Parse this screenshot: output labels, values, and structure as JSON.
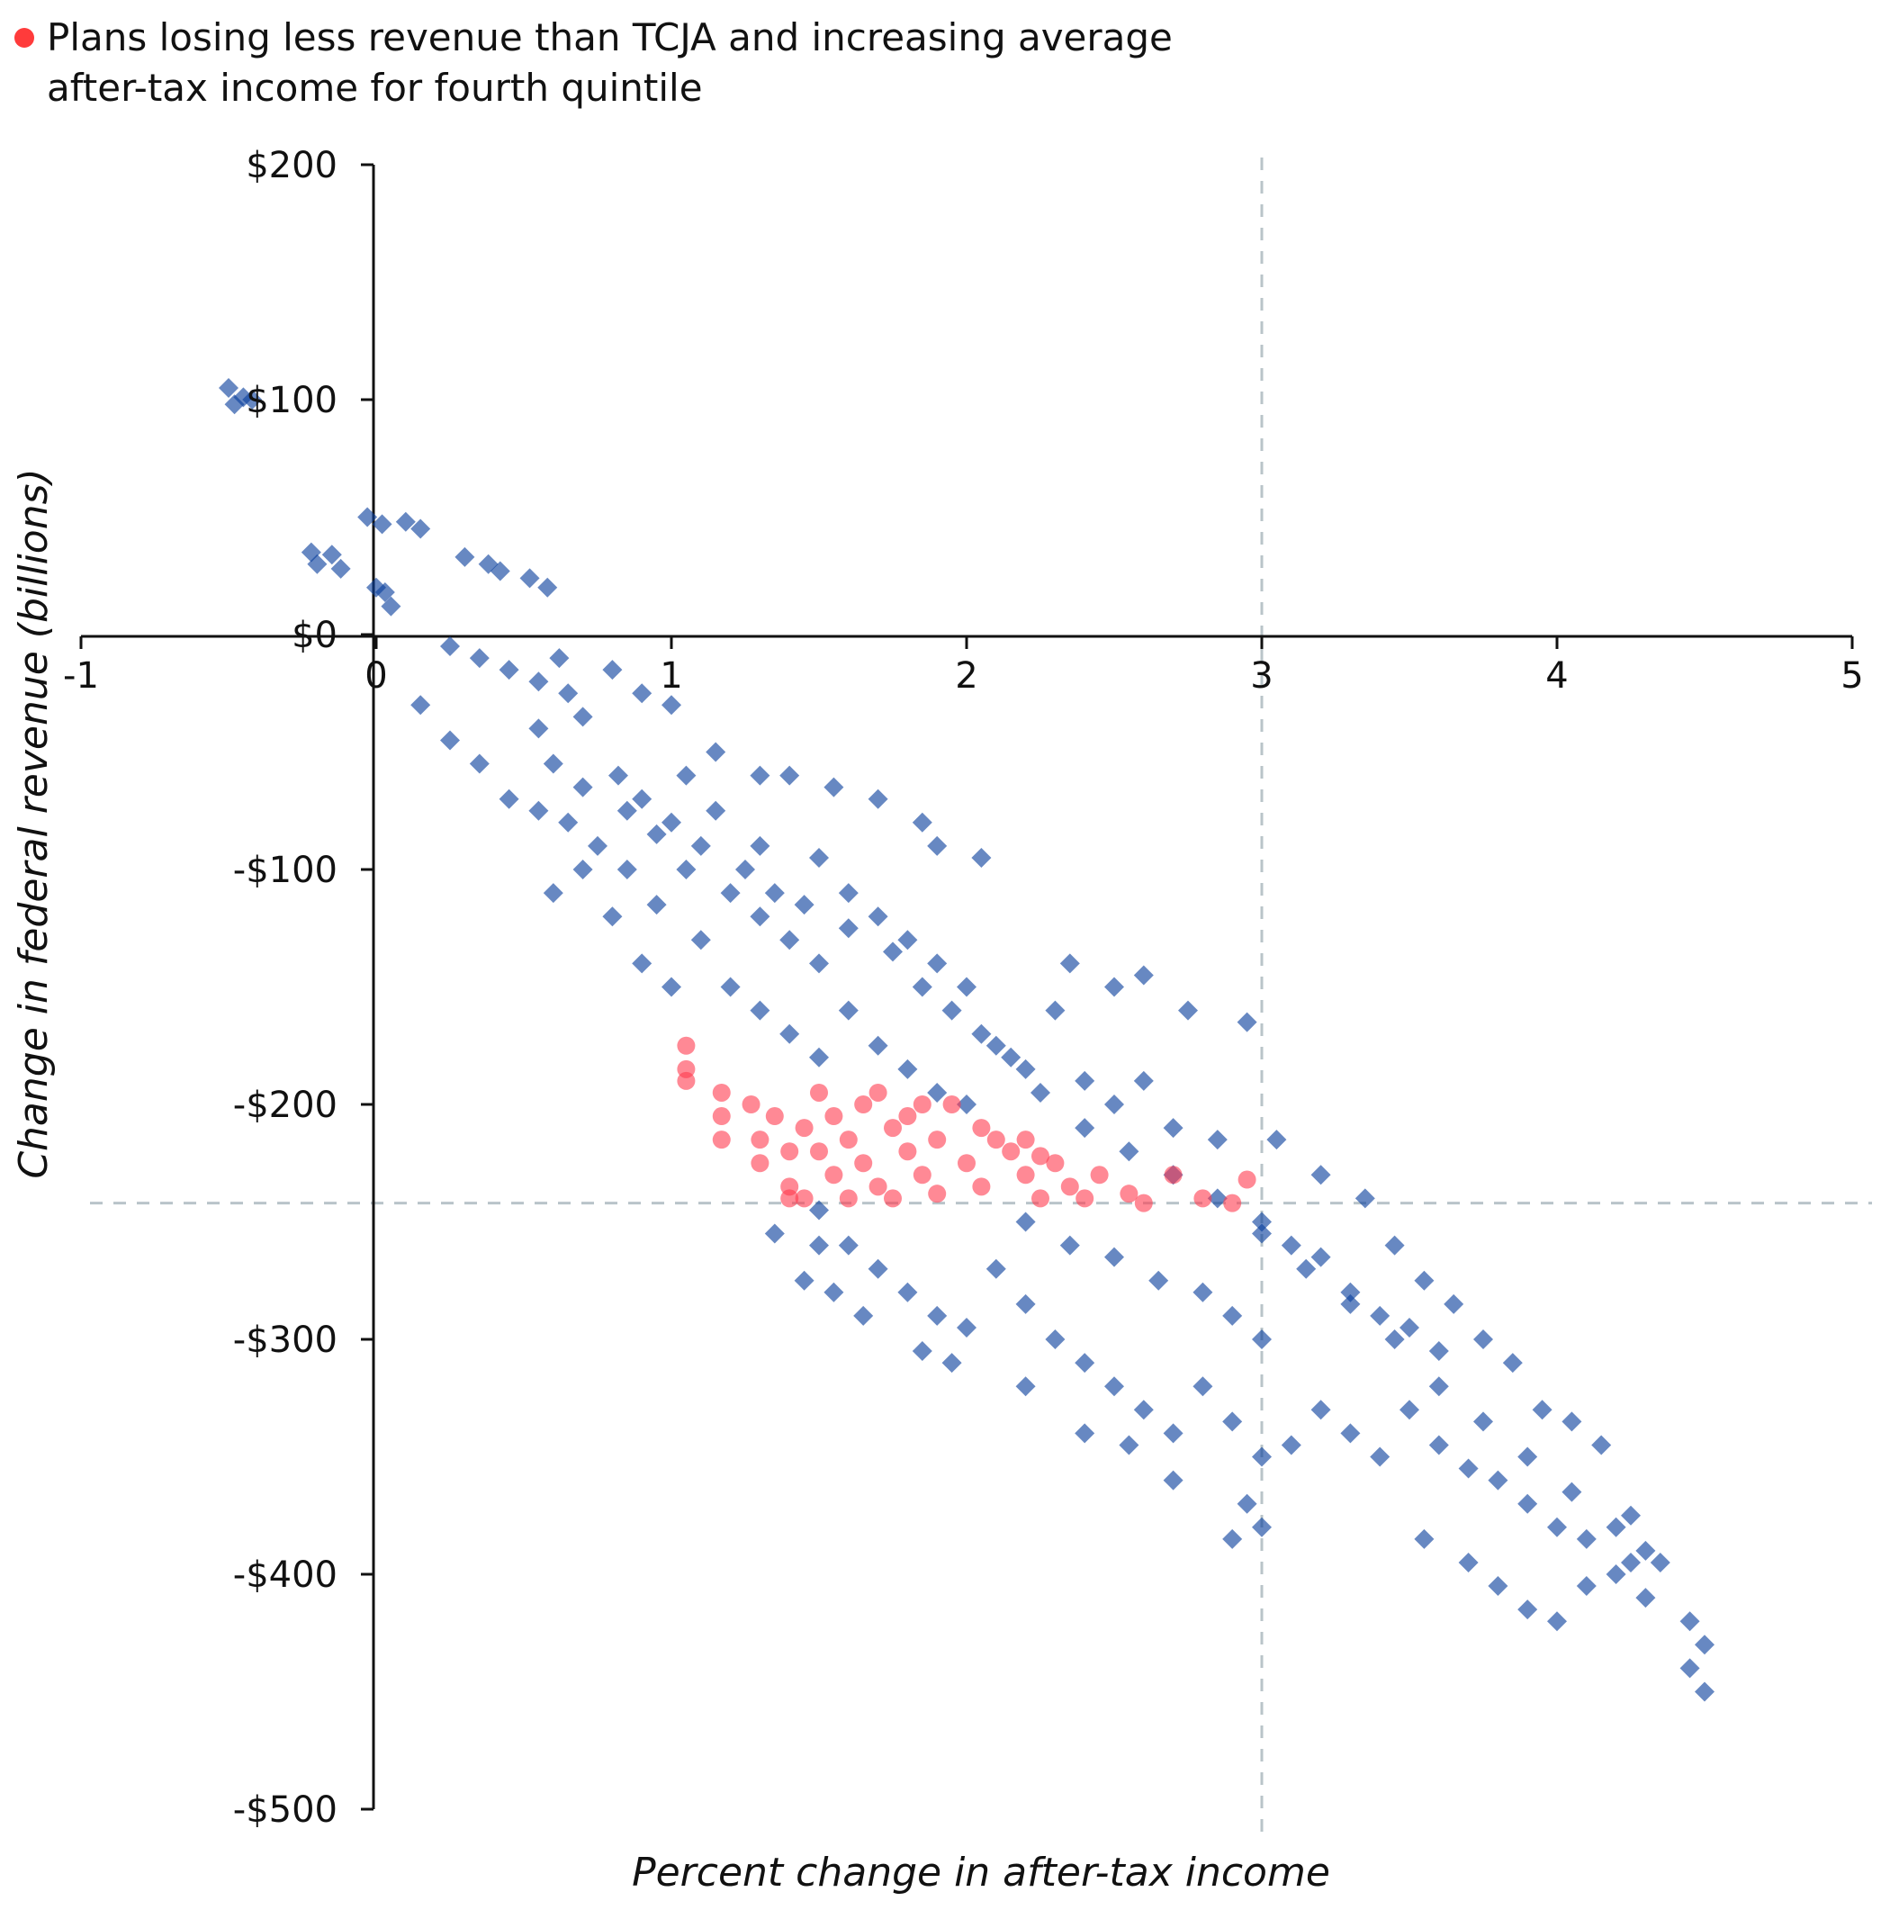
{
  "chart_data": {
    "type": "scatter",
    "title": "",
    "xlabel": "Percent change in after-tax income",
    "ylabel": "Change in federal revenue (billions)",
    "xlim": [
      -1,
      5
    ],
    "ylim": [
      -500,
      200
    ],
    "x_ticks": [
      -1,
      0,
      1,
      2,
      3,
      4,
      5
    ],
    "x_tick_labels": [
      "-1",
      "0",
      "1",
      "2",
      "3",
      "4",
      "5"
    ],
    "y_ticks": [
      200,
      100,
      0,
      -100,
      -200,
      -300,
      -400,
      -500
    ],
    "y_tick_labels": [
      "$200",
      "$100",
      "$0",
      "-$100",
      "-$200",
      "-$300",
      "-$400",
      "-$500"
    ],
    "reference_lines": {
      "x": 3.0,
      "y": -242
    },
    "legend": {
      "placement": "top-left",
      "entries": [
        {
          "label": "Plans losing less revenue than TCJA and increasing average after-tax income for fourth quintile",
          "color": "#ff3b3b",
          "marker": "circle"
        }
      ]
    },
    "colors": {
      "blue_series": "#0a3f9c",
      "red_series": "#ff3b4f",
      "reference": "#b9c4c9",
      "axis": "#111111"
    },
    "series": [
      {
        "marker": "diamond",
        "color": "#0a3f9c",
        "points": [
          [
            -0.5,
            105
          ],
          [
            -0.45,
            101
          ],
          [
            -0.48,
            98
          ],
          [
            -0.42,
            100
          ],
          [
            -0.22,
            35
          ],
          [
            -0.2,
            30
          ],
          [
            -0.15,
            34
          ],
          [
            -0.12,
            28
          ],
          [
            -0.03,
            50
          ],
          [
            0.02,
            47
          ],
          [
            0.1,
            48
          ],
          [
            0.15,
            45
          ],
          [
            0.0,
            20
          ],
          [
            0.05,
            12
          ],
          [
            0.03,
            18
          ],
          [
            0.3,
            33
          ],
          [
            0.38,
            30
          ],
          [
            0.42,
            27
          ],
          [
            0.52,
            24
          ],
          [
            0.58,
            20
          ],
          [
            0.25,
            -5
          ],
          [
            0.35,
            -10
          ],
          [
            0.45,
            -15
          ],
          [
            0.55,
            -20
          ],
          [
            0.65,
            -25
          ],
          [
            0.7,
            -35
          ],
          [
            0.62,
            -10
          ],
          [
            0.8,
            -15
          ],
          [
            0.9,
            -25
          ],
          [
            1.0,
            -30
          ],
          [
            0.15,
            -30
          ],
          [
            0.25,
            -45
          ],
          [
            0.35,
            -55
          ],
          [
            0.45,
            -70
          ],
          [
            0.55,
            -75
          ],
          [
            0.65,
            -80
          ],
          [
            0.75,
            -90
          ],
          [
            0.85,
            -100
          ],
          [
            0.95,
            -115
          ],
          [
            0.6,
            -110
          ],
          [
            0.7,
            -100
          ],
          [
            0.8,
            -120
          ],
          [
            0.9,
            -140
          ],
          [
            1.0,
            -150
          ],
          [
            0.82,
            -60
          ],
          [
            0.9,
            -70
          ],
          [
            1.0,
            -80
          ],
          [
            1.1,
            -90
          ],
          [
            1.05,
            -60
          ],
          [
            1.15,
            -75
          ],
          [
            1.2,
            -110
          ],
          [
            1.3,
            -120
          ],
          [
            1.4,
            -130
          ],
          [
            1.5,
            -140
          ],
          [
            1.1,
            -130
          ],
          [
            1.2,
            -150
          ],
          [
            1.3,
            -160
          ],
          [
            1.4,
            -170
          ],
          [
            1.5,
            -180
          ],
          [
            1.15,
            -50
          ],
          [
            1.3,
            -60
          ],
          [
            1.4,
            -60
          ],
          [
            1.55,
            -65
          ],
          [
            1.7,
            -70
          ],
          [
            1.85,
            -80
          ],
          [
            1.9,
            -90
          ],
          [
            2.05,
            -95
          ],
          [
            1.3,
            -90
          ],
          [
            1.5,
            -95
          ],
          [
            1.6,
            -110
          ],
          [
            1.7,
            -120
          ],
          [
            1.8,
            -130
          ],
          [
            1.9,
            -140
          ],
          [
            2.0,
            -150
          ],
          [
            1.6,
            -160
          ],
          [
            1.7,
            -175
          ],
          [
            1.8,
            -185
          ],
          [
            1.9,
            -195
          ],
          [
            2.0,
            -200
          ],
          [
            2.1,
            -175
          ],
          [
            2.2,
            -185
          ],
          [
            2.3,
            -160
          ],
          [
            2.35,
            -140
          ],
          [
            2.5,
            -150
          ],
          [
            2.6,
            -145
          ],
          [
            2.75,
            -160
          ],
          [
            2.95,
            -165
          ],
          [
            2.4,
            -190
          ],
          [
            2.5,
            -200
          ],
          [
            2.6,
            -190
          ],
          [
            2.7,
            -210
          ],
          [
            2.85,
            -215
          ],
          [
            3.05,
            -215
          ],
          [
            1.5,
            -245
          ],
          [
            1.6,
            -260
          ],
          [
            1.7,
            -270
          ],
          [
            1.8,
            -280
          ],
          [
            1.9,
            -290
          ],
          [
            2.0,
            -295
          ],
          [
            1.55,
            -280
          ],
          [
            2.1,
            -270
          ],
          [
            2.2,
            -285
          ],
          [
            2.3,
            -300
          ],
          [
            2.4,
            -310
          ],
          [
            2.5,
            -320
          ],
          [
            2.6,
            -330
          ],
          [
            2.7,
            -340
          ],
          [
            2.2,
            -250
          ],
          [
            2.35,
            -260
          ],
          [
            2.5,
            -265
          ],
          [
            2.65,
            -275
          ],
          [
            2.8,
            -280
          ],
          [
            2.9,
            -290
          ],
          [
            3.0,
            -300
          ],
          [
            2.8,
            -320
          ],
          [
            2.9,
            -335
          ],
          [
            3.0,
            -350
          ],
          [
            3.1,
            -345
          ],
          [
            3.2,
            -330
          ],
          [
            3.3,
            -340
          ],
          [
            3.4,
            -350
          ],
          [
            3.0,
            -250
          ],
          [
            3.1,
            -260
          ],
          [
            3.2,
            -265
          ],
          [
            3.3,
            -280
          ],
          [
            3.4,
            -290
          ],
          [
            3.5,
            -295
          ],
          [
            3.6,
            -305
          ],
          [
            3.2,
            -230
          ],
          [
            3.35,
            -240
          ],
          [
            3.45,
            -260
          ],
          [
            3.55,
            -275
          ],
          [
            3.65,
            -285
          ],
          [
            3.75,
            -300
          ],
          [
            3.5,
            -330
          ],
          [
            3.6,
            -345
          ],
          [
            3.7,
            -355
          ],
          [
            3.8,
            -360
          ],
          [
            3.9,
            -370
          ],
          [
            4.0,
            -380
          ],
          [
            4.1,
            -385
          ],
          [
            3.55,
            -385
          ],
          [
            3.7,
            -395
          ],
          [
            3.8,
            -405
          ],
          [
            3.9,
            -415
          ],
          [
            4.0,
            -420
          ],
          [
            4.1,
            -405
          ],
          [
            4.2,
            -400
          ],
          [
            4.25,
            -395
          ],
          [
            4.3,
            -410
          ],
          [
            4.45,
            -420
          ],
          [
            4.5,
            -430
          ],
          [
            4.45,
            -440
          ],
          [
            4.5,
            -450
          ],
          [
            3.85,
            -310
          ],
          [
            3.95,
            -330
          ],
          [
            4.05,
            -335
          ],
          [
            4.15,
            -345
          ],
          [
            4.25,
            -375
          ],
          [
            4.3,
            -390
          ],
          [
            2.95,
            -370
          ],
          [
            3.0,
            -380
          ],
          [
            2.9,
            -385
          ],
          [
            2.7,
            -360
          ],
          [
            2.55,
            -345
          ],
          [
            2.4,
            -340
          ],
          [
            2.2,
            -320
          ],
          [
            1.85,
            -305
          ],
          [
            1.95,
            -310
          ],
          [
            1.65,
            -290
          ],
          [
            1.45,
            -275
          ],
          [
            1.5,
            -260
          ],
          [
            1.35,
            -255
          ],
          [
            0.55,
            -40
          ],
          [
            0.6,
            -55
          ],
          [
            0.7,
            -65
          ],
          [
            0.85,
            -75
          ],
          [
            0.95,
            -85
          ],
          [
            1.05,
            -100
          ],
          [
            1.25,
            -100
          ],
          [
            1.35,
            -110
          ],
          [
            1.45,
            -115
          ],
          [
            1.6,
            -125
          ],
          [
            1.75,
            -135
          ],
          [
            1.85,
            -150
          ],
          [
            1.95,
            -160
          ],
          [
            2.05,
            -170
          ],
          [
            2.15,
            -180
          ],
          [
            2.25,
            -195
          ],
          [
            2.4,
            -210
          ],
          [
            2.55,
            -220
          ],
          [
            2.7,
            -230
          ],
          [
            2.85,
            -240
          ],
          [
            3.0,
            -255
          ],
          [
            3.15,
            -270
          ],
          [
            3.3,
            -285
          ],
          [
            3.45,
            -300
          ],
          [
            3.6,
            -320
          ],
          [
            3.75,
            -335
          ],
          [
            3.9,
            -350
          ],
          [
            4.05,
            -365
          ],
          [
            4.2,
            -380
          ],
          [
            4.35,
            -395
          ]
        ]
      },
      {
        "marker": "circle",
        "color": "#ff3b4f",
        "points": [
          [
            1.05,
            -175
          ],
          [
            1.05,
            -185
          ],
          [
            1.05,
            -190
          ],
          [
            1.17,
            -195
          ],
          [
            1.17,
            -205
          ],
          [
            1.17,
            -215
          ],
          [
            1.27,
            -200
          ],
          [
            1.3,
            -215
          ],
          [
            1.3,
            -225
          ],
          [
            1.35,
            -205
          ],
          [
            1.4,
            -220
          ],
          [
            1.4,
            -235
          ],
          [
            1.4,
            -240
          ],
          [
            1.45,
            -210
          ],
          [
            1.5,
            -220
          ],
          [
            1.55,
            -230
          ],
          [
            1.6,
            -240
          ],
          [
            1.55,
            -205
          ],
          [
            1.6,
            -215
          ],
          [
            1.65,
            -225
          ],
          [
            1.7,
            -235
          ],
          [
            1.65,
            -200
          ],
          [
            1.75,
            -210
          ],
          [
            1.8,
            -220
          ],
          [
            1.85,
            -230
          ],
          [
            1.9,
            -238
          ],
          [
            1.8,
            -205
          ],
          [
            1.9,
            -215
          ],
          [
            2.0,
            -225
          ],
          [
            2.05,
            -235
          ],
          [
            1.95,
            -200
          ],
          [
            2.05,
            -210
          ],
          [
            2.15,
            -220
          ],
          [
            2.2,
            -230
          ],
          [
            2.25,
            -240
          ],
          [
            2.2,
            -215
          ],
          [
            2.3,
            -225
          ],
          [
            2.35,
            -235
          ],
          [
            2.4,
            -240
          ],
          [
            2.45,
            -230
          ],
          [
            2.55,
            -238
          ],
          [
            2.6,
            -242
          ],
          [
            2.7,
            -230
          ],
          [
            2.8,
            -240
          ],
          [
            2.9,
            -242
          ],
          [
            2.95,
            -232
          ],
          [
            1.5,
            -195
          ],
          [
            1.7,
            -195
          ],
          [
            1.85,
            -200
          ],
          [
            2.1,
            -215
          ],
          [
            2.25,
            -222
          ],
          [
            1.45,
            -240
          ],
          [
            1.75,
            -240
          ]
        ]
      }
    ]
  }
}
